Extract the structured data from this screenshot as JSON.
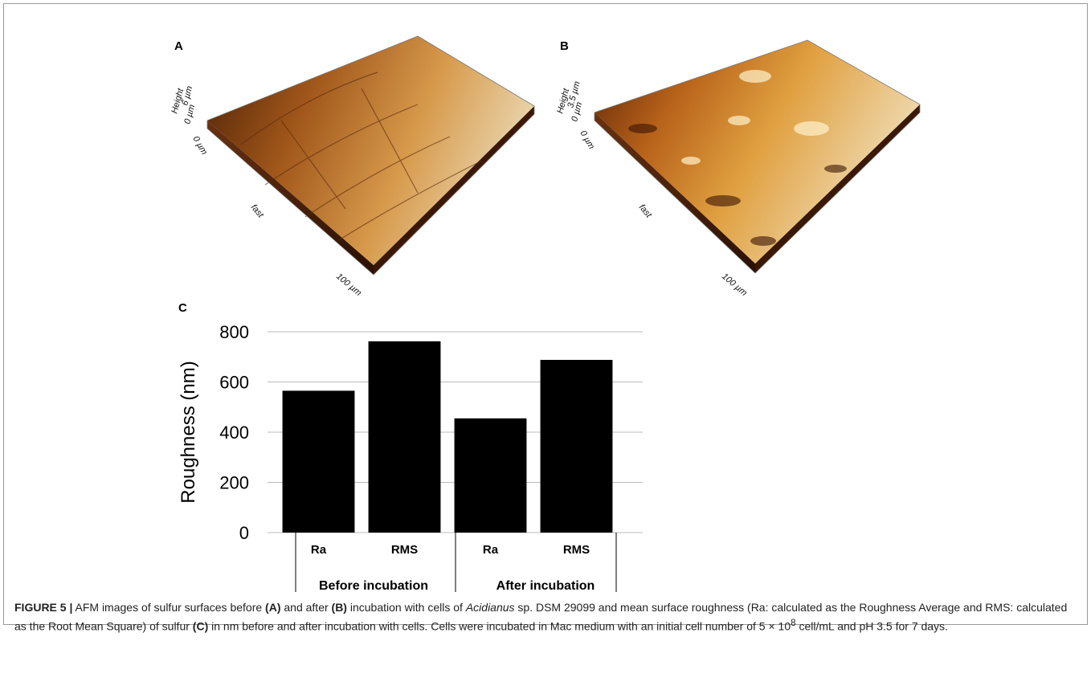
{
  "panels": [
    {
      "label": "A",
      "height_max": "6 µm",
      "height_title": "Height",
      "height_min": "0 µm",
      "axis_start": "0 µm",
      "axis_name": "fast",
      "axis_end": "100 µm"
    },
    {
      "label": "B",
      "height_max": "3.5 µm",
      "height_title": "Height",
      "height_min": "0 µm",
      "axis_start": "0 µm",
      "axis_name": "fast",
      "axis_end": "100 µm"
    }
  ],
  "chart_data": {
    "type": "bar",
    "label": "C",
    "y_label": "Roughness (nm)",
    "categories": [
      "Ra",
      "RMS",
      "Ra",
      "RMS"
    ],
    "groups": [
      "Before incubation",
      "After incubation"
    ],
    "values": [
      565,
      762,
      455,
      688
    ],
    "color": "#000000",
    "ylim": [
      0,
      800
    ],
    "yticks": [
      0,
      200,
      400,
      600,
      800
    ],
    "grid": true
  },
  "caption": {
    "figure_label": "FIGURE 5 |",
    "parts": [
      "AFM images of sulfur surfaces before",
      "(A)",
      "and after",
      "(B)",
      "incubation with cells of",
      "Acidianus",
      "sp. DSM 29099 and mean surface roughness (Ra: calculated as the Roughness Average and RMS: calculated as the Root Mean Square) of sulfur",
      "(C)",
      "in nm before and after incubation with cells. Cells were incubated in Mac medium with an initial cell number of 5 × 10",
      "8",
      "cell/mL and pH 3.5 for 7 days."
    ]
  }
}
